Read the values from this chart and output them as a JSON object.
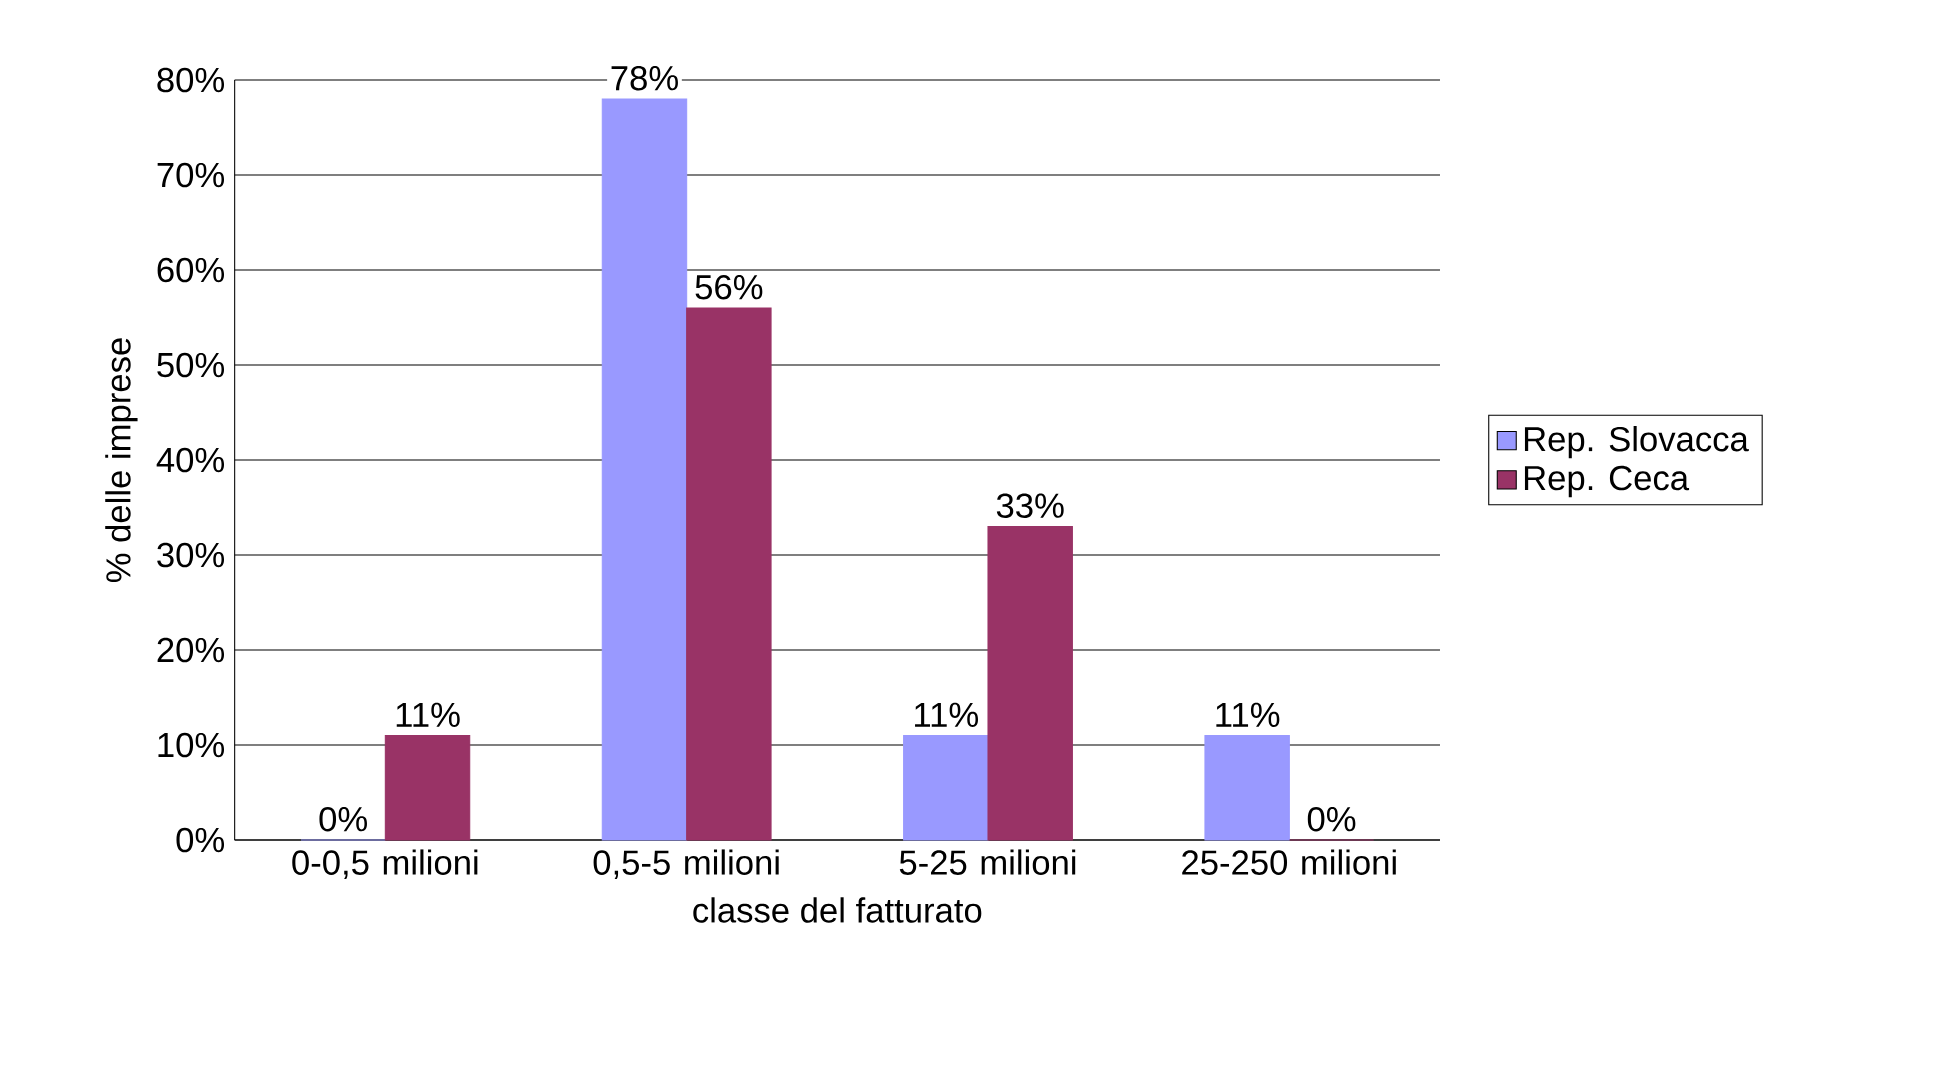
{
  "chart_data": {
    "type": "bar",
    "xlabel": "classe del fatturato",
    "ylabel": "% delle imprese",
    "categories": [
      "0-0,5 milioni",
      "0,5-5 milioni",
      "5-25 milioni",
      "25-250 milioni"
    ],
    "series": [
      {
        "name": "Rep. Slovacca",
        "color": "#9999ff",
        "values": [
          0,
          78,
          11,
          11
        ],
        "value_labels": [
          "0%",
          "78%",
          "11%",
          "11%"
        ]
      },
      {
        "name": "Rep. Ceca",
        "color": "#993366",
        "values": [
          11,
          56,
          33,
          0
        ],
        "value_labels": [
          "11%",
          "56%",
          "33%",
          "0%"
        ]
      }
    ],
    "ylim": [
      0,
      80
    ],
    "yticks": [
      {
        "value": 0,
        "label": "0%"
      },
      {
        "value": 10,
        "label": "10%"
      },
      {
        "value": 20,
        "label": "20%"
      },
      {
        "value": 30,
        "label": "30%"
      },
      {
        "value": 40,
        "label": "40%"
      },
      {
        "value": 50,
        "label": "50%"
      },
      {
        "value": 60,
        "label": "60%"
      },
      {
        "value": 70,
        "label": "70%"
      },
      {
        "value": 80,
        "label": "80%"
      }
    ],
    "grid": "y",
    "legend": "right"
  }
}
